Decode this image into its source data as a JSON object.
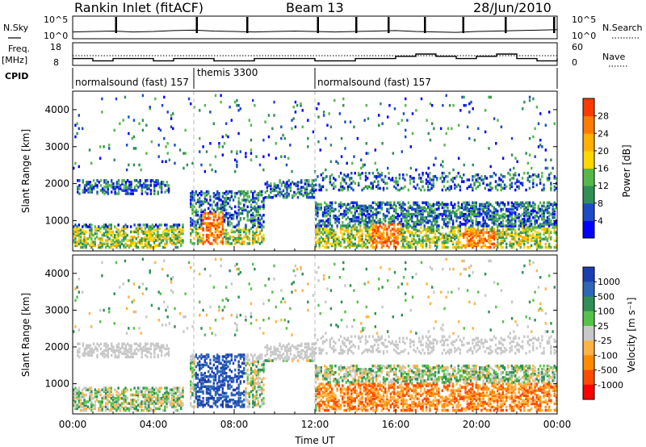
{
  "header": {
    "station": "Rankin Inlet (fitACF)",
    "beam": "Beam 13",
    "date": "28/Jun/2010"
  },
  "colors": {
    "axis": "#000000",
    "background": "#ffffff",
    "power_scale": [
      "#0000ff",
      "#1c4bc8",
      "#2f8f55",
      "#56b84a",
      "#ffd700",
      "#ffb000",
      "#ff7a00",
      "#ff3a00",
      "#ff0000"
    ],
    "velocity_scale": [
      "#1c3fb0",
      "#2e67b8",
      "#2f8f55",
      "#56c24a",
      "#c8c8c8",
      "#ffb347",
      "#ff8c00",
      "#ff4a00",
      "#ff0000"
    ]
  },
  "chart_data": [
    {
      "type": "line",
      "panel": "noise",
      "left_label": "N.Sky",
      "right_label": "N.Search",
      "left_ticks": [
        "10^5",
        "10^0"
      ],
      "right_ticks": [
        "10^5",
        "10^0"
      ],
      "x": [
        "00:00",
        "01:00",
        "02:00",
        "03:00",
        "04:00",
        "05:00",
        "06:00",
        "07:00",
        "08:00",
        "09:00",
        "10:00",
        "11:00",
        "12:00",
        "13:00",
        "14:00",
        "15:00",
        "16:00",
        "17:00",
        "18:00",
        "19:00",
        "20:00",
        "21:00",
        "22:00",
        "23:00",
        "24:00"
      ],
      "series": [
        {
          "values": [
            1.5,
            1.6,
            1.7,
            1.5,
            1.6,
            1.8,
            1.9,
            1.7,
            1.6,
            1.5,
            1.6,
            1.7,
            1.6,
            1.5,
            1.6,
            1.7,
            1.8,
            1.6,
            1.5,
            1.4,
            1.6,
            1.7,
            1.8,
            1.9,
            2.0
          ]
        }
      ],
      "log_scale": true
    },
    {
      "type": "line",
      "panel": "frequency",
      "left_label": "Freq.",
      "left_unit": "[MHz]",
      "right_label": "Nave",
      "left_ticks": [
        18,
        8
      ],
      "right_ticks": [
        60,
        0
      ],
      "x": [
        "00:00",
        "01:00",
        "02:00",
        "03:00",
        "04:00",
        "05:00",
        "06:00",
        "07:00",
        "08:00",
        "09:00",
        "10:00",
        "11:00",
        "12:00",
        "13:00",
        "14:00",
        "15:00",
        "16:00",
        "17:00",
        "18:00",
        "19:00",
        "20:00",
        "21:00",
        "22:00",
        "23:00",
        "24:00"
      ],
      "series": [
        {
          "values": [
            11,
            10,
            11,
            11,
            10,
            11,
            11,
            10,
            10,
            11,
            11,
            11,
            10,
            10,
            11,
            11,
            12,
            13,
            12,
            11,
            12,
            13,
            11,
            10,
            11
          ]
        }
      ]
    },
    {
      "type": "table",
      "panel": "cpid",
      "label": "CPID",
      "segments": [
        {
          "label": "normalsound (fast) 157",
          "start": "00:00",
          "end": "06:00"
        },
        {
          "label": "themis 3300",
          "start": "06:00",
          "end": "12:00"
        },
        {
          "label": "normalsound (fast) 157",
          "start": "12:00",
          "end": "24:00"
        }
      ]
    },
    {
      "type": "heatmap",
      "panel": "power",
      "ylabel": "Slant Range [km]",
      "colorbar_label": "Power [dB]",
      "colorbar_ticks": [
        4,
        8,
        12,
        16,
        20,
        24,
        28
      ],
      "y_ticks": [
        1000,
        2000,
        3000,
        4000
      ],
      "ylim": [
        180,
        4500
      ],
      "x_ticks": [
        "00:00",
        "04:00",
        "08:00",
        "12:00",
        "16:00",
        "20:00",
        "00:00"
      ],
      "xlim": [
        0,
        24
      ]
    },
    {
      "type": "heatmap",
      "panel": "velocity",
      "ylabel": "Slant Range [km]",
      "xlabel": "Time UT",
      "colorbar_label": "Velocity [m s⁻¹]",
      "colorbar_ticks": [
        1000,
        500,
        100,
        25,
        -25,
        -100,
        -500,
        -1000
      ],
      "y_ticks": [
        1000,
        2000,
        3000,
        4000
      ],
      "ylim": [
        180,
        4500
      ],
      "x_ticks": [
        "00:00",
        "04:00",
        "08:00",
        "12:00",
        "16:00",
        "20:00",
        "00:00"
      ],
      "xlim": [
        0,
        24
      ]
    }
  ]
}
